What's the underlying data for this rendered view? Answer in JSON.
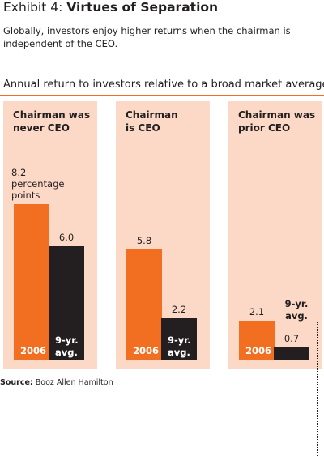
{
  "header": {
    "exhibit_label": "Exhibit 4:",
    "title": "Virtues of Separation",
    "subtitle": "Globally, investors enjoy higher returns when the chairman is independent of the CEO."
  },
  "axis_caption": "Annual return to investors relative to a broad market average",
  "source": {
    "label": "Source:",
    "text": "Booz Allen Hamilton"
  },
  "colors": {
    "accent_orange": "#f26f21",
    "bar_black": "#231f20",
    "panel_background": "#fbd9c6"
  },
  "chart_data": {
    "type": "bar",
    "title": "Virtues of Separation",
    "ylabel": "Annual return to investors relative to a broad market average",
    "ylim": [
      0,
      8.2
    ],
    "grid": false,
    "legend": "none",
    "series_labels": [
      "2006",
      "9-yr. avg."
    ],
    "panels": [
      {
        "category": "Chairman was never CEO",
        "title_lines": [
          "Chairman was",
          "never CEO"
        ],
        "values": [
          8.2,
          6.0
        ],
        "value_labels": [
          "8.2",
          "6.0"
        ],
        "value_label_extra": [
          "percentage",
          "points"
        ]
      },
      {
        "category": "Chairman is CEO",
        "title_lines": [
          "Chairman",
          "is CEO"
        ],
        "values": [
          5.8,
          2.2
        ],
        "value_labels": [
          "5.8",
          "2.2"
        ]
      },
      {
        "category": "Chairman was prior CEO",
        "title_lines": [
          "Chairman was",
          "prior CEO"
        ],
        "values": [
          2.1,
          0.7
        ],
        "value_labels": [
          "2.1",
          "0.7"
        ]
      }
    ],
    "bar_labels": {
      "year": "2006",
      "avg_line1": "9-yr.",
      "avg_line2": "avg."
    }
  }
}
